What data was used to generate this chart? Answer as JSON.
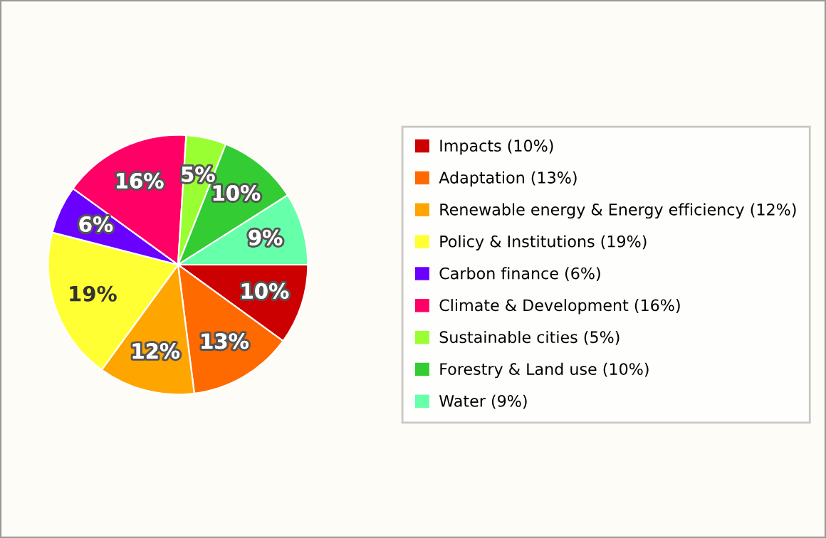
{
  "chart_data": {
    "type": "pie",
    "categories": [
      "Impacts (10%)",
      "Adaptation (13%)",
      "Renewable energy & Energy efficiency (12%)",
      "Policy & Institutions (19%)",
      "Carbon finance (6%)",
      "Climate & Development (16%)",
      "Sustainable cities (5%)",
      "Forestry & Land use (10%)",
      "Water (9%)"
    ],
    "values": [
      10,
      13,
      12,
      19,
      6,
      16,
      5,
      10,
      9
    ],
    "value_labels": [
      "10%",
      "13%",
      "12%",
      "19%",
      "6%",
      "16%",
      "5%",
      "10%",
      "9%"
    ],
    "colors": [
      "#cc0000",
      "#ff6a00",
      "#ffa500",
      "#ffff33",
      "#6a00ff",
      "#ff0066",
      "#99ff33",
      "#33cc33",
      "#66ffaa"
    ],
    "legend": "right"
  }
}
